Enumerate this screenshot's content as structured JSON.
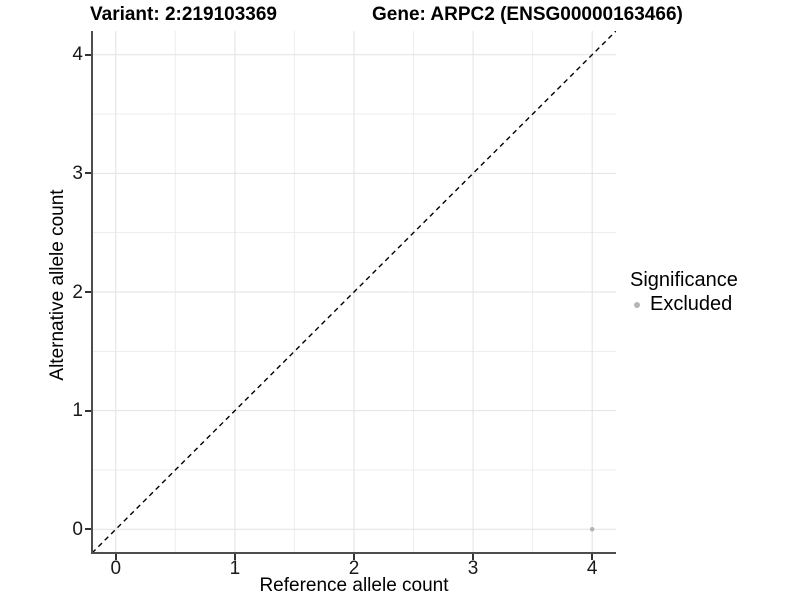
{
  "titles": {
    "variant": "Variant: 2:219103369",
    "gene": "Gene: ARPC2 (ENSG00000163466)"
  },
  "chart_data": {
    "type": "scatter",
    "xlabel": "Reference allele count",
    "ylabel": "Alternative allele count",
    "xlim": [
      -0.2,
      4.2
    ],
    "ylim": [
      -0.2,
      4.2
    ],
    "x_ticks": [
      0,
      1,
      2,
      3,
      4
    ],
    "y_ticks": [
      0,
      1,
      2,
      3,
      4
    ],
    "minor_gridlines": [
      0.5,
      1.5,
      2.5,
      3.5
    ],
    "grid": true,
    "points": [
      {
        "x": 4,
        "y": 0,
        "series": "Excluded"
      }
    ],
    "reference_line": {
      "kind": "identity y=x",
      "style": "dashed",
      "from": [
        -0.2,
        -0.2
      ],
      "to": [
        4.2,
        4.2
      ]
    },
    "legend": {
      "title": "Significance",
      "position": "right",
      "items": [
        {
          "label": "Excluded",
          "color": "#b5b5b5"
        }
      ]
    }
  },
  "colors": {
    "point": "#b5b5b5",
    "dashed_line": "#000000",
    "axis_line": "#4d4d4d",
    "tick_mark": "#333333",
    "grid_major": "#e2e2e2",
    "grid_minor": "#ededed",
    "background": "#ffffff"
  }
}
